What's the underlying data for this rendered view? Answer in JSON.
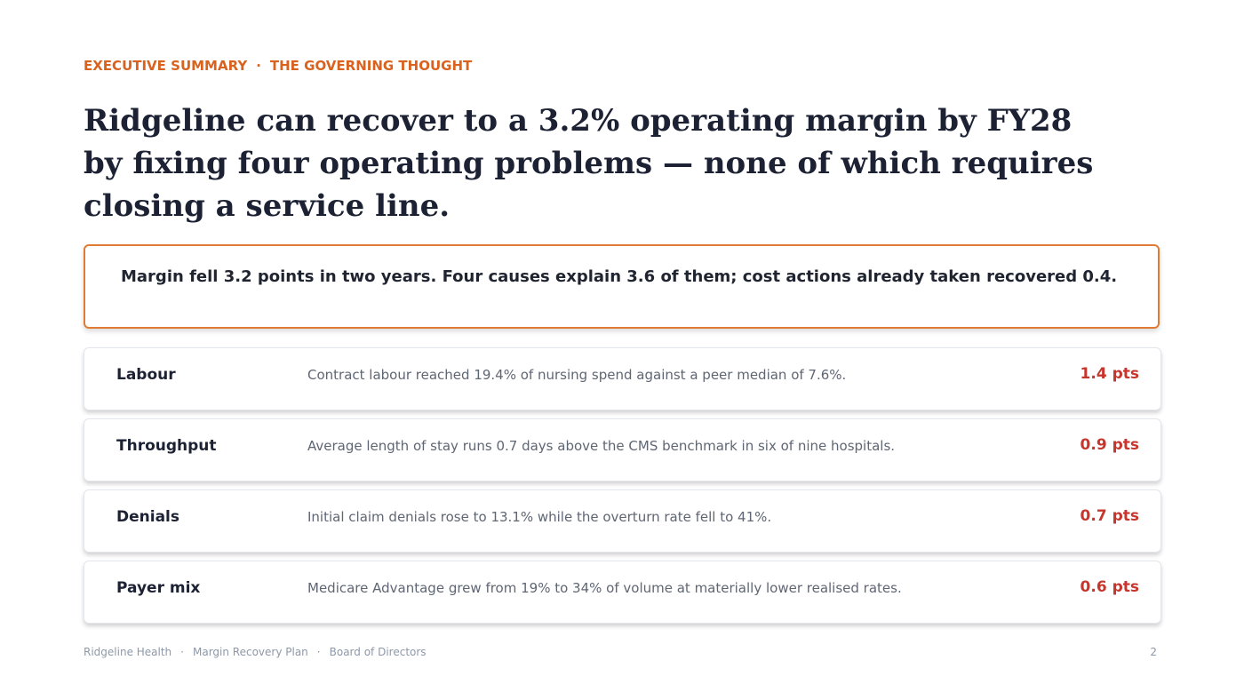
{
  "eyebrow": {
    "items": [
      "EXECUTIVE SUMMARY",
      "THE GOVERNING THOUGHT"
    ],
    "separator": "·"
  },
  "title": "Ridgeline can recover to a 3.2% operating margin by FY28 by fixing four operating problems — none of which requires closing a service line.",
  "callout": "Margin fell 3.2 points in two years. Four causes explain 3.6 of them; cost actions already taken recovered 0.4.",
  "rows": [
    {
      "label": "Labour",
      "text": "Contract labour reached 19.4% of nursing spend against a peer median of 7.6%.",
      "impact": "1.4 pts"
    },
    {
      "label": "Throughput",
      "text": "Average length of stay runs 0.7 days above the CMS benchmark in six of nine hospitals.",
      "impact": "0.9 pts"
    },
    {
      "label": "Denials",
      "text": "Initial claim denials rose to 13.1% while the overturn rate fell to 41%.",
      "impact": "0.7 pts"
    },
    {
      "label": "Payer mix",
      "text": "Medicare Advantage grew from 19% to 34% of volume at materially lower realised rates.",
      "impact": "0.6 pts"
    }
  ],
  "footer": {
    "items": [
      "Ridgeline Health",
      "Margin Recovery Plan",
      "Board of Directors"
    ],
    "separator": "·",
    "page": "2"
  }
}
